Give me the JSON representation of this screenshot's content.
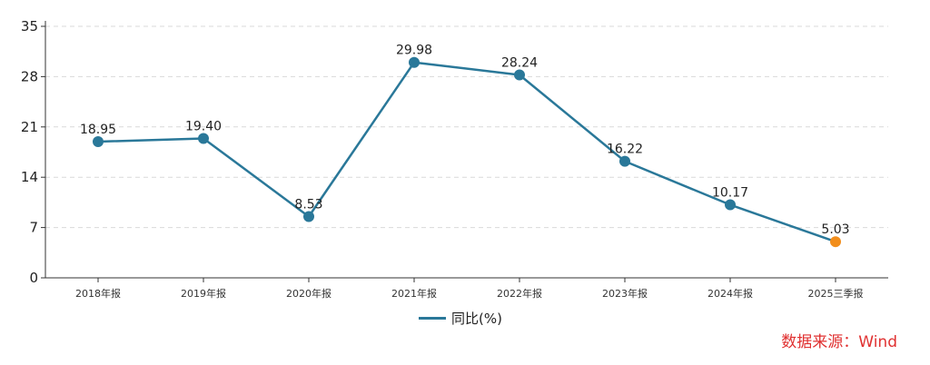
{
  "chart_data": {
    "type": "line",
    "categories": [
      "2018年报",
      "2019年报",
      "2020年报",
      "2021年报",
      "2022年报",
      "2023年报",
      "2024年报",
      "2025三季报"
    ],
    "series": [
      {
        "name": "同比(%)",
        "values": [
          18.95,
          19.4,
          8.53,
          29.98,
          28.24,
          16.22,
          10.17,
          5.03
        ],
        "color": "#2a7899"
      }
    ],
    "data_labels": [
      "18.95",
      "19.40",
      "8.53",
      "29.98",
      "28.24",
      "16.22",
      "10.17",
      "5.03"
    ],
    "highlight_last_color": "#f28e1c",
    "ylim": [
      0,
      35
    ],
    "yticks": [
      0,
      7,
      14,
      21,
      28,
      35
    ],
    "grid": true,
    "legend_position": "bottom-center"
  },
  "source_text": "数据来源：Wind"
}
